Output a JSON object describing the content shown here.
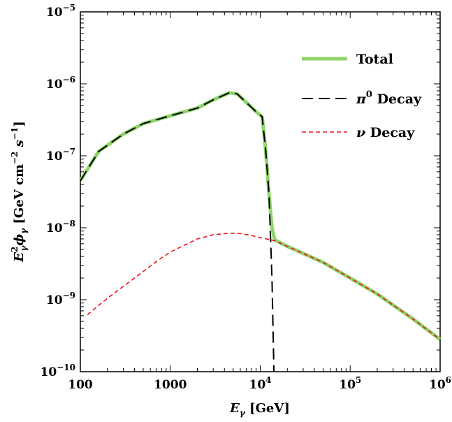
{
  "chart_data": {
    "type": "line",
    "x_scale": "log",
    "y_scale": "log",
    "xlim": [
      100,
      1000000
    ],
    "ylim": [
      1e-10,
      1e-05
    ],
    "xlabel": {
      "base": "E",
      "sub": "γ",
      "rest": " [GeV]"
    },
    "ylabel": {
      "base": "E",
      "sup": "2",
      "sub": "γ",
      "mid": "ϕ",
      "mid_sub": "γ",
      "unit_open": " [GeV cm",
      "unit_exp1": "−2",
      "unit_mid": " s",
      "unit_exp2": "−1",
      "unit_close": "]"
    },
    "x_ticks": [
      {
        "value": 100,
        "label": "100"
      },
      {
        "value": 1000,
        "label": "1000"
      },
      {
        "value": 10000,
        "base": "10",
        "exp": "4"
      },
      {
        "value": 100000,
        "base": "10",
        "exp": "5"
      },
      {
        "value": 1000000,
        "base": "10",
        "exp": "6"
      }
    ],
    "y_ticks": [
      {
        "value": 1e-10,
        "base": "10",
        "exp": "−10"
      },
      {
        "value": 1e-09,
        "base": "10",
        "exp": "−9"
      },
      {
        "value": 1e-08,
        "base": "10",
        "exp": "−8"
      },
      {
        "value": 1e-07,
        "base": "10",
        "exp": "−7"
      },
      {
        "value": 1e-06,
        "base": "10",
        "exp": "−6"
      },
      {
        "value": 1e-05,
        "base": "10",
        "exp": "−5"
      }
    ],
    "grid": false,
    "legend_position": "top-right",
    "series": [
      {
        "name": "Total",
        "color": "#8fd46a",
        "style": "solid",
        "points": [
          [
            100,
            4.5e-08
          ],
          [
            160,
            1.15e-07
          ],
          [
            300,
            2e-07
          ],
          [
            500,
            2.8e-07
          ],
          [
            1000,
            3.6e-07
          ],
          [
            2000,
            4.6e-07
          ],
          [
            3000,
            6e-07
          ],
          [
            4500,
            7.5e-07
          ],
          [
            5500,
            7.3e-07
          ],
          [
            7000,
            5.5e-07
          ],
          [
            9000,
            4.1e-07
          ],
          [
            10500,
            3.5e-07
          ],
          [
            11500,
            1.2e-07
          ],
          [
            12500,
            3e-08
          ],
          [
            13500,
            1e-08
          ],
          [
            14500,
            6.8e-09
          ],
          [
            20000,
            5.5e-09
          ],
          [
            30000,
            4.4e-09
          ],
          [
            50000,
            3.3e-09
          ],
          [
            100000,
            2e-09
          ],
          [
            200000,
            1.2e-09
          ],
          [
            500000,
            5.4e-10
          ],
          [
            1000000,
            2.8e-10
          ]
        ]
      },
      {
        "name": "π⁰ Decay",
        "legend": {
          "base": "π",
          "sup": "0",
          "rest": " Decay"
        },
        "color": "#000000",
        "style": "long-dash",
        "points": [
          [
            100,
            4.5e-08
          ],
          [
            160,
            1.15e-07
          ],
          [
            300,
            2e-07
          ],
          [
            500,
            2.8e-07
          ],
          [
            1000,
            3.6e-07
          ],
          [
            2000,
            4.6e-07
          ],
          [
            3000,
            6e-07
          ],
          [
            4500,
            7.5e-07
          ],
          [
            5500,
            7.3e-07
          ],
          [
            7000,
            5.5e-07
          ],
          [
            9000,
            4.1e-07
          ],
          [
            10500,
            3.5e-07
          ],
          [
            11500,
            1.2e-07
          ],
          [
            12500,
            3e-08
          ],
          [
            13500,
            2e-09
          ],
          [
            14200,
            1e-10
          ]
        ]
      },
      {
        "name": "ν Decay",
        "legend": {
          "base": "ν",
          "rest": " Decay"
        },
        "color": "#e8161b",
        "style": "short-dash",
        "points": [
          [
            120,
            6.2e-10
          ],
          [
            200,
            1.05e-09
          ],
          [
            400,
            2e-09
          ],
          [
            700,
            3.4e-09
          ],
          [
            1000,
            4.6e-09
          ],
          [
            2000,
            7e-09
          ],
          [
            3000,
            8e-09
          ],
          [
            4500,
            8.4e-09
          ],
          [
            6000,
            8.3e-09
          ],
          [
            8000,
            7.8e-09
          ],
          [
            10000,
            7.3e-09
          ],
          [
            14500,
            6.6e-09
          ],
          [
            20000,
            5.5e-09
          ],
          [
            30000,
            4.4e-09
          ],
          [
            50000,
            3.3e-09
          ],
          [
            100000,
            2e-09
          ],
          [
            200000,
            1.2e-09
          ],
          [
            500000,
            5.4e-10
          ],
          [
            1000000,
            2.8e-10
          ]
        ]
      }
    ]
  }
}
